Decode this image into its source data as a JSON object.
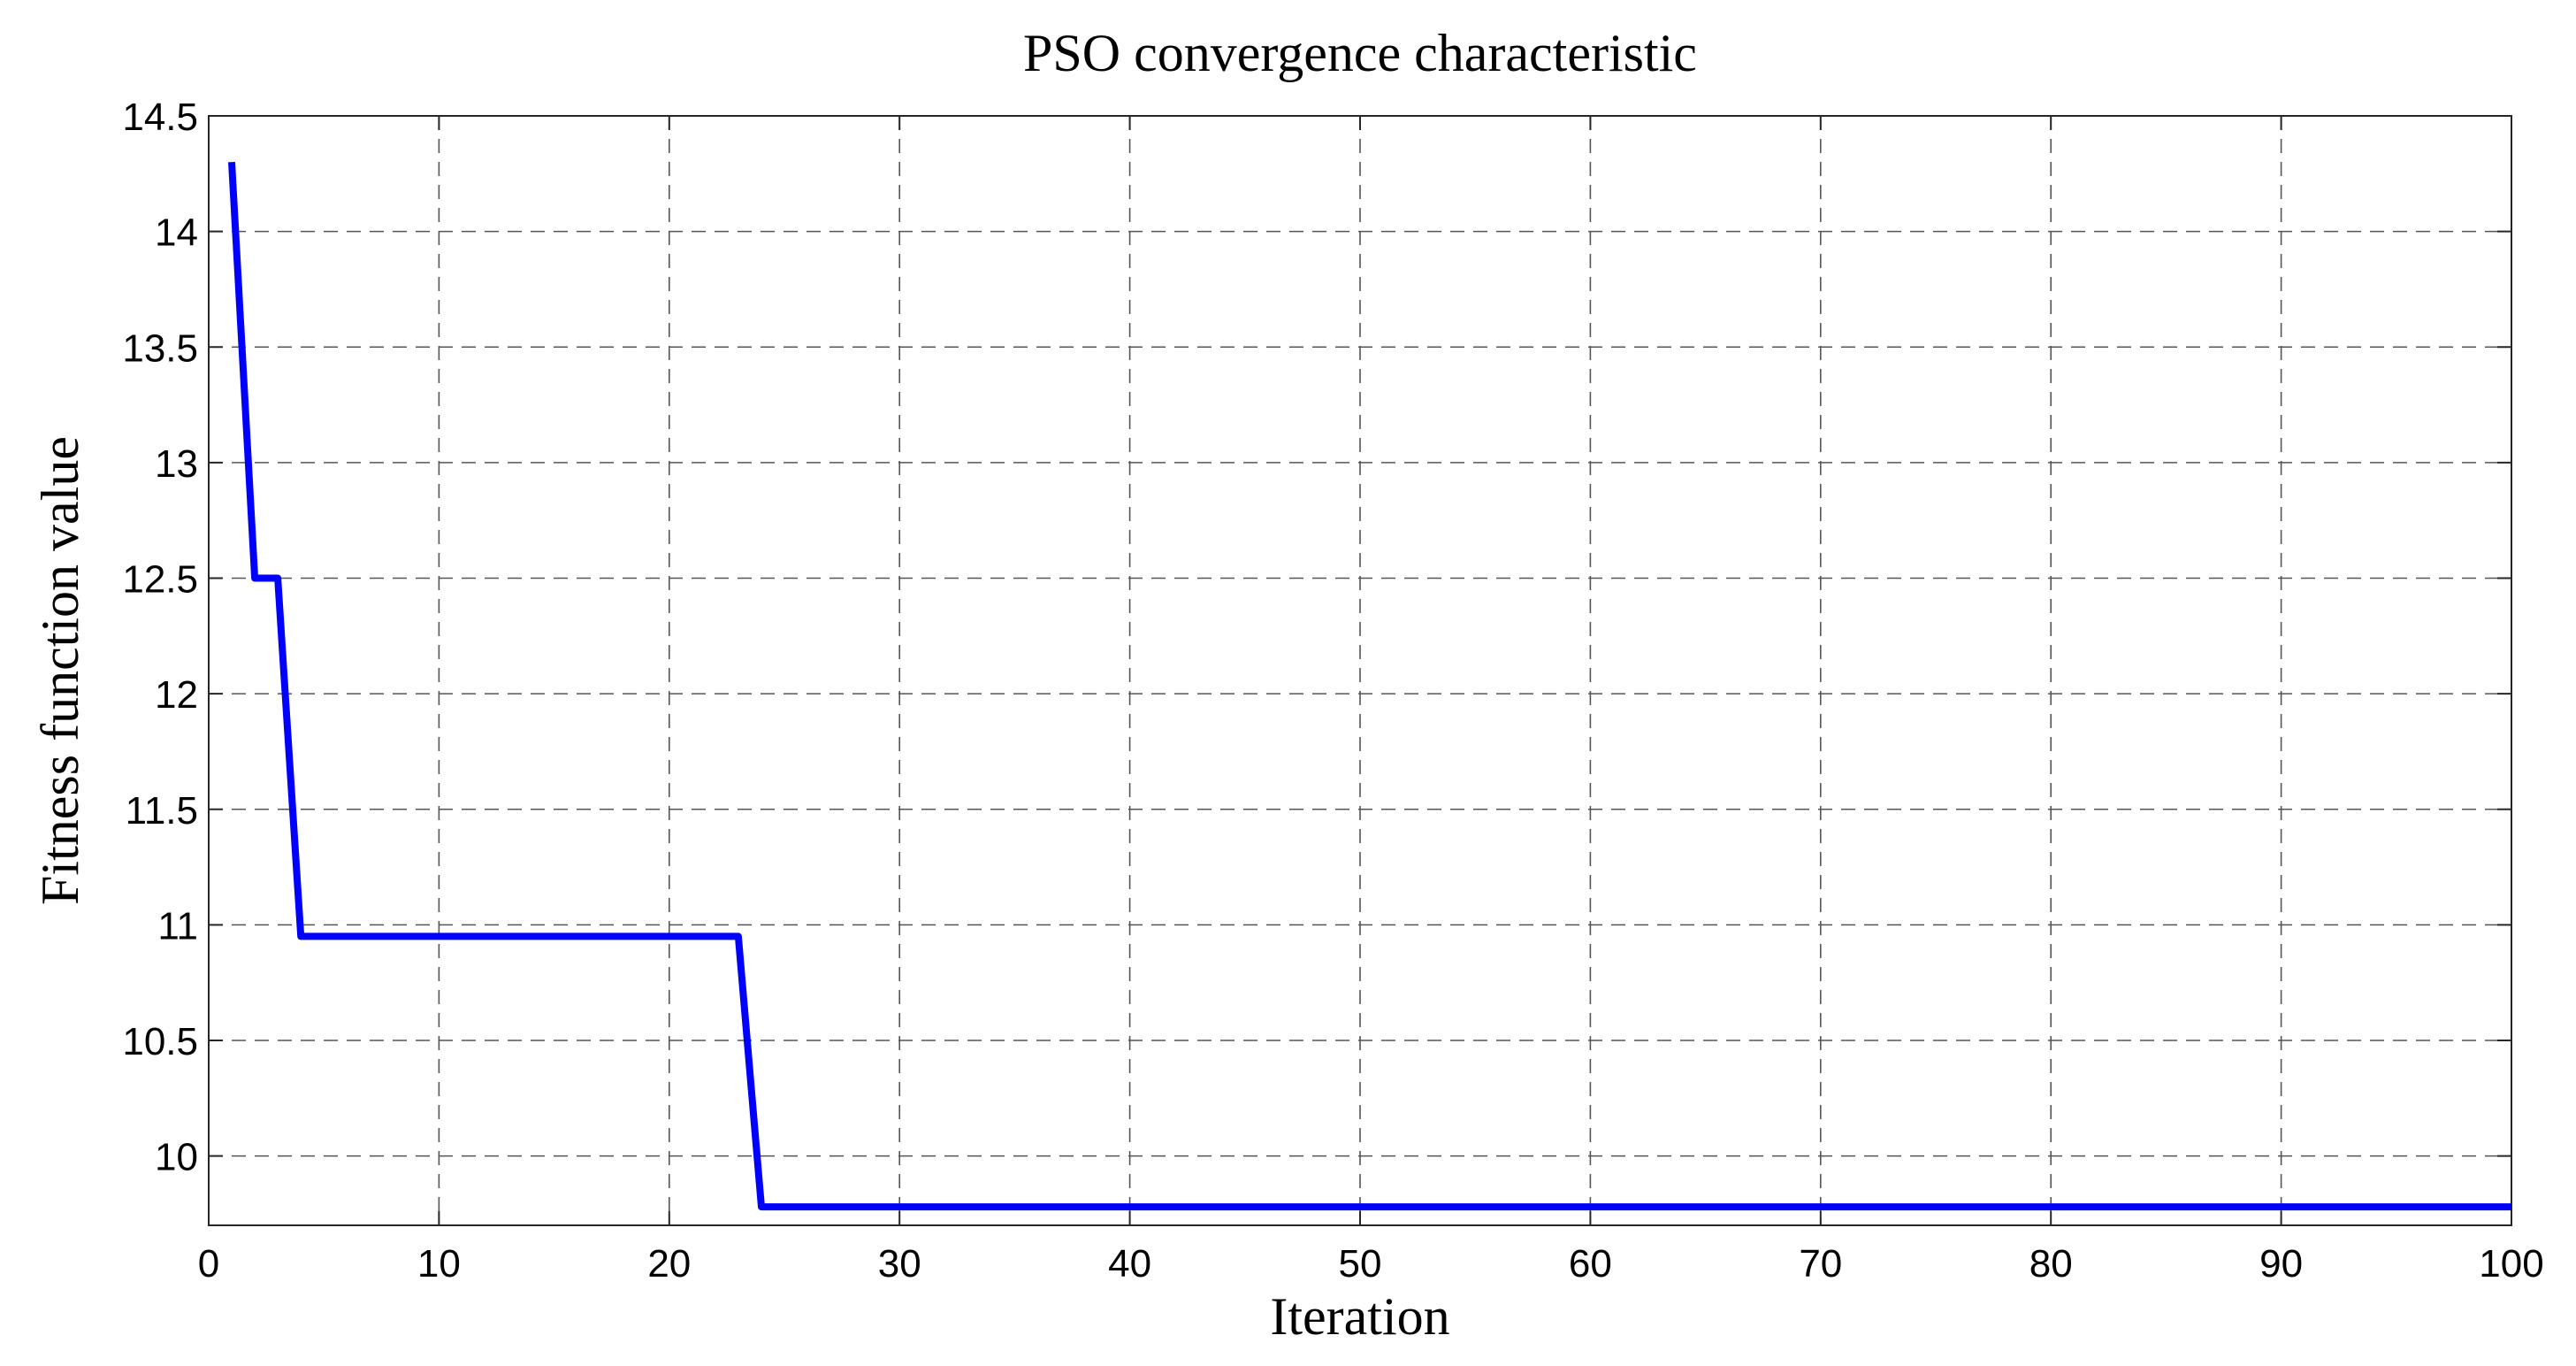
{
  "chart_data": {
    "type": "line",
    "title": "PSO convergence characteristic",
    "xlabel": "Iteration",
    "ylabel": "Fitness function value",
    "xlim": [
      0,
      100
    ],
    "ylim": [
      9.7,
      14.5
    ],
    "x_ticks": [
      0,
      10,
      20,
      30,
      40,
      50,
      60,
      70,
      80,
      90,
      100
    ],
    "y_ticks": [
      10,
      10.5,
      11,
      11.5,
      12,
      12.5,
      13,
      13.5,
      14,
      14.5
    ],
    "x_tick_labels": [
      "0",
      "10",
      "20",
      "30",
      "40",
      "50",
      "60",
      "70",
      "80",
      "90",
      "100"
    ],
    "y_tick_labels": [
      "10",
      "10.5",
      "11",
      "11.5",
      "12",
      "12.5",
      "13",
      "13.5",
      "14",
      "14.5"
    ],
    "grid": true,
    "grid_style": "dashed",
    "series": [
      {
        "color": "#0000ff",
        "x": [
          1,
          2,
          3,
          4,
          5,
          6,
          7,
          8,
          9,
          10,
          11,
          12,
          13,
          14,
          15,
          16,
          17,
          18,
          19,
          20,
          21,
          22,
          23,
          24,
          25,
          26,
          27,
          28,
          29,
          30,
          31,
          32,
          33,
          34,
          35,
          36,
          37,
          38,
          39,
          40,
          41,
          42,
          43,
          44,
          45,
          46,
          47,
          48,
          49,
          50,
          51,
          52,
          53,
          54,
          55,
          56,
          57,
          58,
          59,
          60,
          61,
          62,
          63,
          64,
          65,
          66,
          67,
          68,
          69,
          70,
          71,
          72,
          73,
          74,
          75,
          76,
          77,
          78,
          79,
          80,
          81,
          82,
          83,
          84,
          85,
          86,
          87,
          88,
          89,
          90,
          91,
          92,
          93,
          94,
          95,
          96,
          97,
          98,
          99,
          100
        ],
        "y": [
          14.3,
          12.5,
          12.5,
          10.95,
          10.95,
          10.95,
          10.95,
          10.95,
          10.95,
          10.95,
          10.95,
          10.95,
          10.95,
          10.95,
          10.95,
          10.95,
          10.95,
          10.95,
          10.95,
          10.95,
          10.95,
          10.95,
          10.95,
          9.78,
          9.78,
          9.78,
          9.78,
          9.78,
          9.78,
          9.78,
          9.78,
          9.78,
          9.78,
          9.78,
          9.78,
          9.78,
          9.78,
          9.78,
          9.78,
          9.78,
          9.78,
          9.78,
          9.78,
          9.78,
          9.78,
          9.78,
          9.78,
          9.78,
          9.78,
          9.78,
          9.78,
          9.78,
          9.78,
          9.78,
          9.78,
          9.78,
          9.78,
          9.78,
          9.78,
          9.78,
          9.78,
          9.78,
          9.78,
          9.78,
          9.78,
          9.78,
          9.78,
          9.78,
          9.78,
          9.78,
          9.78,
          9.78,
          9.78,
          9.78,
          9.78,
          9.78,
          9.78,
          9.78,
          9.78,
          9.78,
          9.78,
          9.78,
          9.78,
          9.78,
          9.78,
          9.78,
          9.78,
          9.78,
          9.78,
          9.78,
          9.78,
          9.78,
          9.78,
          9.78,
          9.78,
          9.78,
          9.78,
          9.78,
          9.78,
          9.78
        ]
      }
    ]
  }
}
